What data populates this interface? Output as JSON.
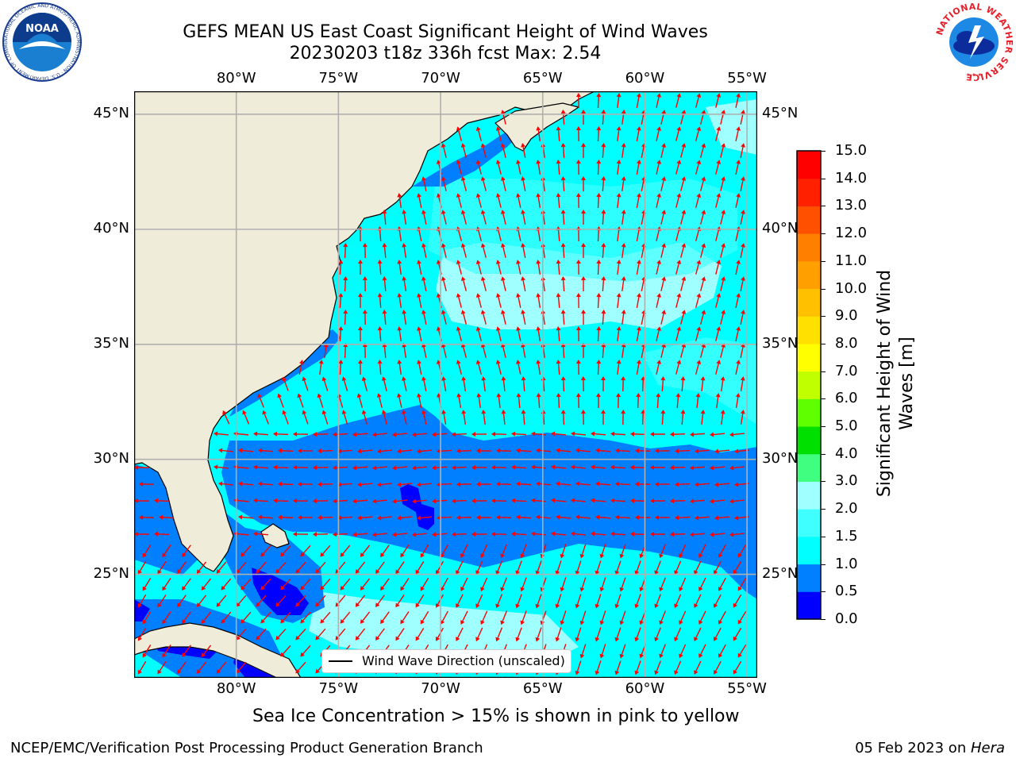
{
  "header": {
    "title_line1": "GEFS MEAN US East Coast Significant Height of Wind Waves",
    "title_line2": "20230203 t18z 336h fcst   Max: 2.54"
  },
  "logos": {
    "noaa": {
      "text": "NOAA",
      "ring_text": "NATIONAL OCEANIC AND ATMOSPHERIC ADMINISTRATION · U.S. DEPARTMENT OF COMMERCE"
    },
    "nws": {
      "ring_text": "NATIONAL WEATHER SERVICE"
    }
  },
  "map": {
    "extent_lon": [
      -85,
      -54.5
    ],
    "extent_lat": [
      20.5,
      46
    ],
    "lon_ticks": [
      {
        "value": -80,
        "label": "80°W"
      },
      {
        "value": -75,
        "label": "75°W"
      },
      {
        "value": -70,
        "label": "70°W"
      },
      {
        "value": -65,
        "label": "65°W"
      },
      {
        "value": -60,
        "label": "60°W"
      },
      {
        "value": -55,
        "label": "55°W"
      }
    ],
    "lat_ticks": [
      {
        "value": 45,
        "label": "45°N"
      },
      {
        "value": 40,
        "label": "40°N"
      },
      {
        "value": 35,
        "label": "35°N"
      },
      {
        "value": 30,
        "label": "30°N"
      },
      {
        "value": 25,
        "label": "25°N"
      }
    ],
    "land_color": "#efecd9",
    "ocean_color": "#00ffff",
    "arrow_color": "#ff0000",
    "legend_label": "Wind Wave Direction (unscaled)"
  },
  "colorbar": {
    "label": "Significant Height of Wind Waves [m]",
    "ticks": [
      "0.0",
      "0.5",
      "1.0",
      "1.5",
      "2.0",
      "3.0",
      "4.0",
      "5.0",
      "6.0",
      "7.0",
      "8.0",
      "9.0",
      "10.0",
      "11.0",
      "12.0",
      "13.0",
      "14.0",
      "15.0"
    ],
    "colors": [
      "#0000ff",
      "#0080ff",
      "#00ffff",
      "#40ffff",
      "#a0ffff",
      "#40ff80",
      "#00e000",
      "#60ff00",
      "#c0ff00",
      "#ffff00",
      "#ffe000",
      "#ffc000",
      "#ffa000",
      "#ff8000",
      "#ff5000",
      "#ff2000",
      "#ff0000"
    ]
  },
  "footnote": "Sea Ice Concentration > 15% is shown in pink to yellow",
  "credit_left": "NCEP/EMC/Verification Post Processing Product Generation Branch",
  "credit_right_date": "05 Feb 2023 on ",
  "credit_right_host": "Hera"
}
